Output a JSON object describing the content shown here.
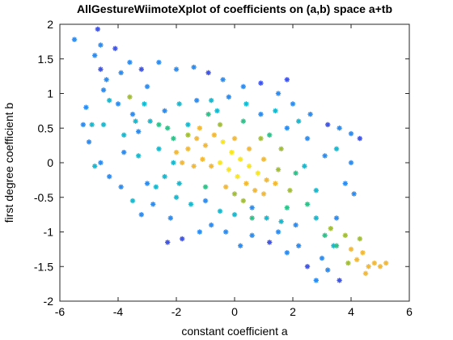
{
  "chart_data": {
    "type": "scatter",
    "title": "AllGestureWiimoteXplot of coefficients on (a,b) space a+tb",
    "xlabel": "constant coefficient a",
    "ylabel": "first degree coefficient b",
    "xlim": [
      -6,
      6
    ],
    "ylim": [
      -2,
      2
    ],
    "xticks": [
      -6,
      -4,
      -2,
      0,
      2,
      4,
      6
    ],
    "yticks": [
      -2,
      -1.5,
      -1,
      -0.5,
      0,
      0.5,
      1,
      1.5,
      2
    ],
    "grid": false,
    "legend": "none",
    "colormap": [
      "#3e26a8",
      "#4055e6",
      "#2d8cf0",
      "#17b9cf",
      "#2dc28a",
      "#a2bd3a",
      "#f1b93a",
      "#f8e620"
    ],
    "marker": "asterisk",
    "points": [
      [
        -5.5,
        1.78,
        2
      ],
      [
        -4.7,
        1.93,
        1
      ],
      [
        -4.6,
        1.7,
        2
      ],
      [
        -4.8,
        1.55,
        2
      ],
      [
        -4.6,
        1.35,
        1
      ],
      [
        -4.1,
        1.65,
        1
      ],
      [
        -4.4,
        1.2,
        2
      ],
      [
        -3.9,
        1.3,
        2
      ],
      [
        -3.6,
        1.45,
        2
      ],
      [
        -3.2,
        1.35,
        1
      ],
      [
        -2.6,
        1.45,
        2
      ],
      [
        -2.0,
        1.35,
        2
      ],
      [
        -1.4,
        1.38,
        2
      ],
      [
        -0.9,
        1.3,
        1
      ],
      [
        -0.4,
        1.2,
        2
      ],
      [
        0.3,
        1.1,
        2
      ],
      [
        0.9,
        1.15,
        1
      ],
      [
        1.5,
        1.0,
        2
      ],
      [
        2.0,
        0.85,
        2
      ],
      [
        2.6,
        0.7,
        2
      ],
      [
        3.2,
        0.55,
        1
      ],
      [
        3.6,
        0.5,
        2
      ],
      [
        4.0,
        0.42,
        2
      ],
      [
        4.3,
        0.35,
        1
      ],
      [
        -5.1,
        0.8,
        2
      ],
      [
        -5.0,
        0.3,
        2
      ],
      [
        -4.9,
        0.55,
        3
      ],
      [
        -4.6,
        0.0,
        2
      ],
      [
        -4.3,
        -0.2,
        2
      ],
      [
        -4.5,
        0.55,
        3
      ],
      [
        -4.0,
        0.85,
        2
      ],
      [
        -3.8,
        0.4,
        3
      ],
      [
        -3.5,
        0.7,
        2
      ],
      [
        -3.3,
        0.1,
        3
      ],
      [
        -3.0,
        -0.3,
        2
      ],
      [
        -2.8,
        -0.6,
        2
      ],
      [
        -2.2,
        -0.8,
        2
      ],
      [
        -1.8,
        -1.1,
        1
      ],
      [
        -1.2,
        -1.0,
        2
      ],
      [
        -0.8,
        -0.9,
        2
      ],
      [
        -0.3,
        -1.0,
        2
      ],
      [
        0.2,
        -1.2,
        2
      ],
      [
        0.6,
        -1.05,
        2
      ],
      [
        1.2,
        -1.15,
        1
      ],
      [
        1.8,
        -1.3,
        2
      ],
      [
        2.2,
        -1.2,
        2
      ],
      [
        2.5,
        -1.5,
        1
      ],
      [
        2.8,
        -1.7,
        2
      ],
      [
        3.2,
        -1.55,
        2
      ],
      [
        3.6,
        -1.7,
        1
      ],
      [
        3.0,
        -1.38,
        2
      ],
      [
        3.4,
        -1.2,
        3
      ],
      [
        3.5,
        -0.8,
        2
      ],
      [
        3.8,
        -0.3,
        2
      ],
      [
        4.1,
        -0.45,
        2
      ],
      [
        4.0,
        0.0,
        2
      ],
      [
        3.5,
        0.2,
        3
      ],
      [
        3.1,
        0.1,
        2
      ],
      [
        2.8,
        -0.4,
        3
      ],
      [
        2.5,
        0.35,
        2
      ],
      [
        2.2,
        0.6,
        3
      ],
      [
        1.8,
        0.5,
        2
      ],
      [
        1.4,
        0.75,
        3
      ],
      [
        0.9,
        0.7,
        2
      ],
      [
        0.4,
        0.85,
        3
      ],
      [
        -0.2,
        0.95,
        2
      ],
      [
        -0.8,
        0.9,
        3
      ],
      [
        -1.3,
        0.9,
        2
      ],
      [
        -1.9,
        0.85,
        3
      ],
      [
        -2.4,
        0.75,
        2
      ],
      [
        -2.9,
        0.6,
        3
      ],
      [
        -3.3,
        0.45,
        2
      ],
      [
        -3.8,
        0.15,
        2
      ],
      [
        -2.0,
        -0.5,
        3
      ],
      [
        -1.5,
        -0.6,
        3
      ],
      [
        -1.0,
        -0.55,
        2
      ],
      [
        -0.5,
        -0.7,
        3
      ],
      [
        0.0,
        -0.75,
        3
      ],
      [
        0.6,
        -0.65,
        2
      ],
      [
        1.1,
        -0.8,
        3
      ],
      [
        1.6,
        -0.85,
        3
      ],
      [
        2.1,
        -0.9,
        2
      ],
      [
        -4.3,
        0.9,
        3
      ],
      [
        -3.6,
        0.95,
        5
      ],
      [
        -4.5,
        1.05,
        2
      ],
      [
        -3.1,
        0.85,
        3
      ],
      [
        -2.6,
        0.2,
        3
      ],
      [
        -2.1,
        0.0,
        3
      ],
      [
        -2.4,
        -0.2,
        3
      ],
      [
        -1.6,
        0.55,
        3
      ],
      [
        -2.1,
        0.35,
        4
      ],
      [
        -1.6,
        0.2,
        6
      ],
      [
        -1.3,
        0.35,
        6
      ],
      [
        -1.0,
        0.25,
        6
      ],
      [
        -0.7,
        0.4,
        6
      ],
      [
        -0.4,
        0.3,
        7
      ],
      [
        -0.1,
        0.15,
        7
      ],
      [
        0.2,
        0.05,
        7
      ],
      [
        0.5,
        -0.05,
        7
      ],
      [
        0.8,
        -0.15,
        7
      ],
      [
        1.1,
        -0.25,
        6
      ],
      [
        1.4,
        -0.3,
        6
      ],
      [
        -1.8,
        0.0,
        6
      ],
      [
        -1.4,
        -0.05,
        6
      ],
      [
        -1.1,
        0.05,
        6
      ],
      [
        -0.8,
        -0.05,
        6
      ],
      [
        -0.5,
        0.0,
        7
      ],
      [
        -0.2,
        -0.1,
        7
      ],
      [
        0.1,
        -0.2,
        7
      ],
      [
        0.4,
        -0.3,
        6
      ],
      [
        0.7,
        -0.4,
        6
      ],
      [
        1.0,
        -0.45,
        6
      ],
      [
        -1.6,
        0.4,
        5
      ],
      [
        -2.0,
        0.15,
        6
      ],
      [
        -1.2,
        0.5,
        6
      ],
      [
        0.0,
        0.35,
        6
      ],
      [
        0.5,
        0.2,
        6
      ],
      [
        1.0,
        0.05,
        6
      ],
      [
        1.5,
        -0.1,
        5
      ],
      [
        1.9,
        -0.4,
        5
      ],
      [
        -0.5,
        0.55,
        5
      ],
      [
        1.6,
        0.2,
        5
      ],
      [
        2.1,
        -0.15,
        4
      ],
      [
        -0.9,
        0.7,
        4
      ],
      [
        -2.3,
        0.5,
        4
      ],
      [
        0.3,
        0.6,
        4
      ],
      [
        1.2,
        0.4,
        4
      ],
      [
        1.8,
        -0.65,
        4
      ],
      [
        -0.3,
        -0.35,
        6
      ],
      [
        0.3,
        -0.55,
        5
      ],
      [
        3.1,
        -1.05,
        4
      ],
      [
        3.3,
        -0.95,
        5
      ],
      [
        3.5,
        -1.2,
        4
      ],
      [
        3.8,
        -1.05,
        5
      ],
      [
        4.0,
        -1.25,
        6
      ],
      [
        4.2,
        -1.4,
        6
      ],
      [
        4.4,
        -1.3,
        6
      ],
      [
        4.6,
        -1.5,
        6
      ],
      [
        4.8,
        -1.45,
        6
      ],
      [
        5.0,
        -1.5,
        6
      ],
      [
        5.2,
        -1.45,
        6
      ],
      [
        4.5,
        -1.6,
        6
      ],
      [
        3.9,
        -1.45,
        5
      ],
      [
        4.3,
        -1.1,
        5
      ],
      [
        -4.8,
        -0.05,
        3
      ],
      [
        -3.9,
        -0.35,
        2
      ],
      [
        -3.5,
        -0.55,
        3
      ],
      [
        -3.2,
        -0.75,
        2
      ],
      [
        -2.7,
        -0.35,
        3
      ],
      [
        -2.3,
        -1.15,
        1
      ],
      [
        1.5,
        -1.0,
        2
      ],
      [
        2.8,
        -0.8,
        3
      ],
      [
        1.8,
        1.2,
        1
      ],
      [
        -3.0,
        1.1,
        2
      ],
      [
        -5.2,
        0.55,
        2
      ],
      [
        0.9,
        0.35,
        5
      ],
      [
        -0.6,
        0.75,
        3
      ],
      [
        2.4,
        -0.05,
        3
      ],
      [
        -1.9,
        -0.3,
        3
      ],
      [
        -3.4,
        0.6,
        3
      ],
      [
        -2.6,
        0.55,
        4
      ],
      [
        0.0,
        -0.45,
        5
      ],
      [
        0.6,
        -0.8,
        4
      ],
      [
        2.5,
        -0.6,
        4
      ],
      [
        -1.0,
        -0.35,
        4
      ]
    ]
  }
}
